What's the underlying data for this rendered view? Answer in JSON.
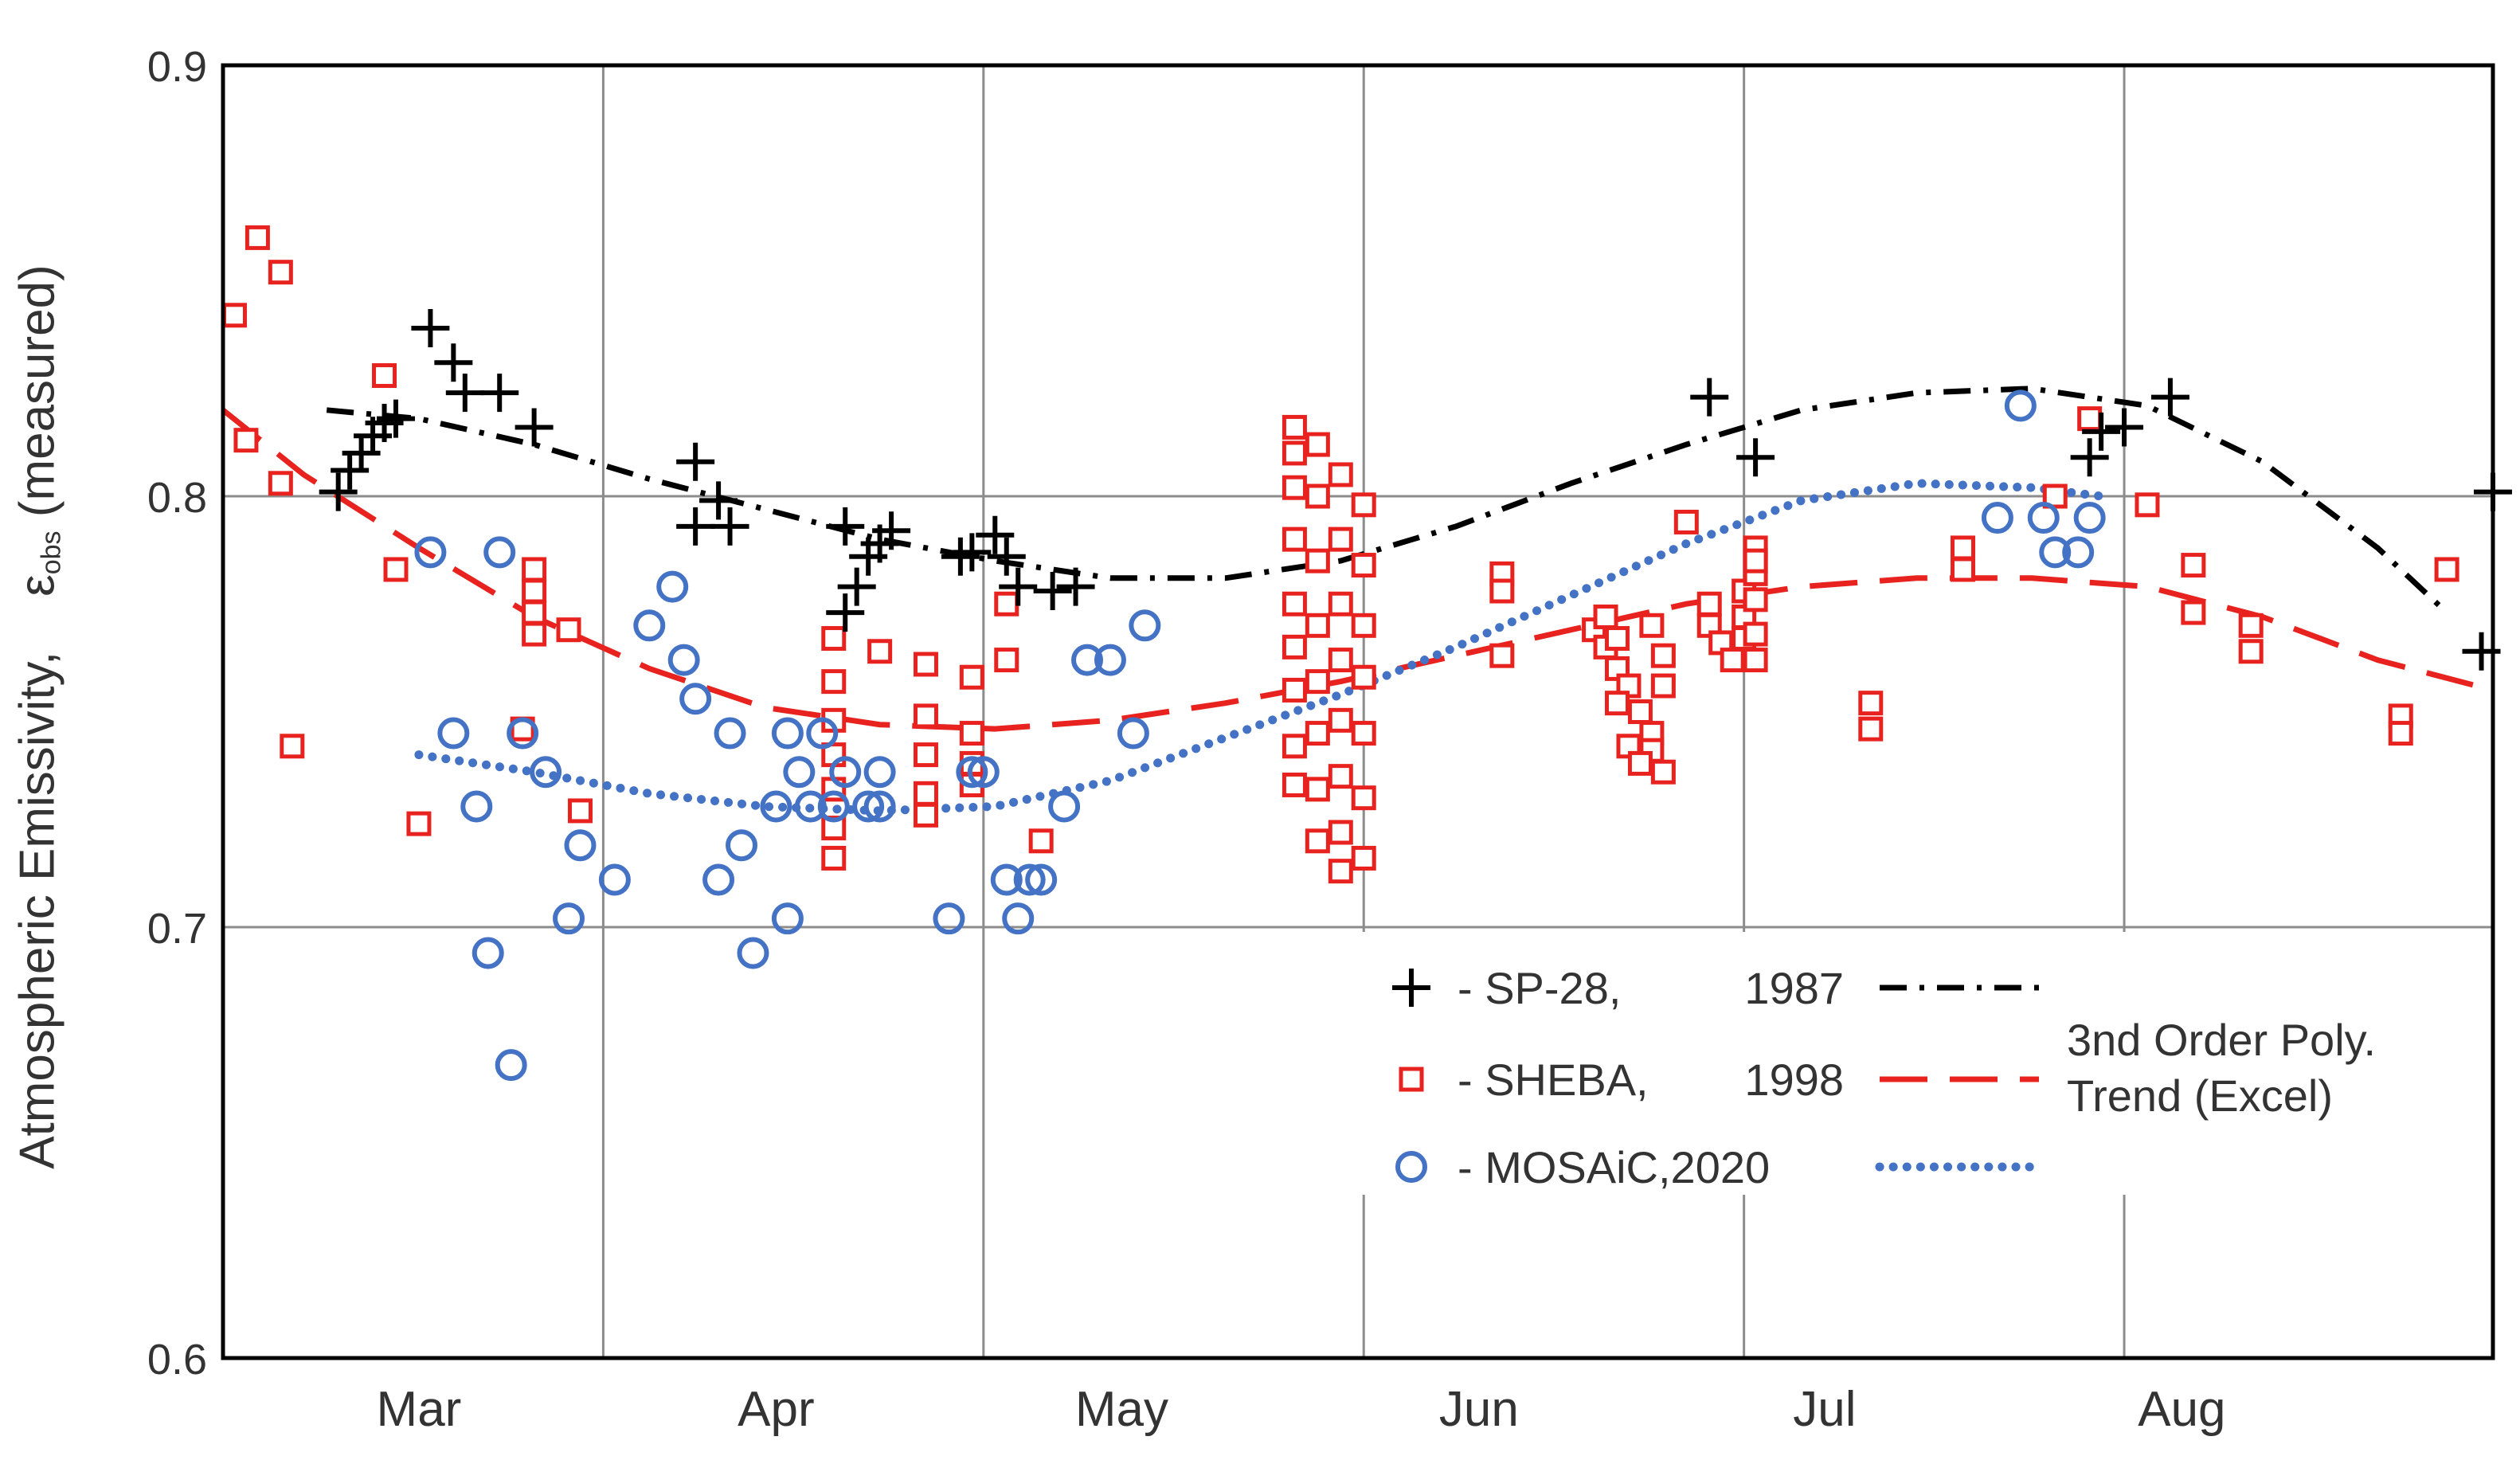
{
  "chart_data": {
    "type": "scatter",
    "title": "",
    "xlabel": "",
    "ylabel_prefix": "Atmospheric Emissivity,",
    "ylabel_symbol": "ε",
    "ylabel_subscript": "obs",
    "ylabel_suffix": "(measured)",
    "x_unit": "day_of_year",
    "xlim": [
      43,
      240
    ],
    "ylim": [
      0.6,
      0.9
    ],
    "yticks": [
      0.6,
      0.7,
      0.8,
      0.9
    ],
    "ytick_labels": [
      "0.6",
      "0.7",
      "0.8",
      "0.9"
    ],
    "month_ticks": [
      {
        "label": "Mar",
        "x": 60
      },
      {
        "label": "Apr",
        "x": 91
      },
      {
        "label": "May",
        "x": 121
      },
      {
        "label": "Jun",
        "x": 152
      },
      {
        "label": "Jul",
        "x": 182
      },
      {
        "label": "Aug",
        "x": 213
      }
    ],
    "gridlines_x": [
      76,
      109,
      142,
      175,
      208
    ],
    "grid": true,
    "series": [
      {
        "name": "SP-28,",
        "year": "1987",
        "color": "#000000",
        "marker": "plus",
        "points": [
          [
            53,
            0.801
          ],
          [
            54,
            0.806
          ],
          [
            55,
            0.81
          ],
          [
            56,
            0.814
          ],
          [
            57,
            0.817
          ],
          [
            58,
            0.818
          ],
          [
            61,
            0.839
          ],
          [
            63,
            0.831
          ],
          [
            64,
            0.824
          ],
          [
            67,
            0.824
          ],
          [
            70,
            0.816
          ],
          [
            84,
            0.808
          ],
          [
            84,
            0.793
          ],
          [
            86,
            0.799
          ],
          [
            87,
            0.793
          ],
          [
            97,
            0.793
          ],
          [
            97,
            0.773
          ],
          [
            98,
            0.779
          ],
          [
            99,
            0.786
          ],
          [
            100,
            0.789
          ],
          [
            101,
            0.792
          ],
          [
            107,
            0.786
          ],
          [
            108,
            0.787
          ],
          [
            110,
            0.791
          ],
          [
            111,
            0.786
          ],
          [
            112,
            0.779
          ],
          [
            115,
            0.778
          ],
          [
            117,
            0.779
          ],
          [
            172,
            0.823
          ],
          [
            176,
            0.809
          ],
          [
            205,
            0.809
          ],
          [
            206,
            0.815
          ],
          [
            208,
            0.816
          ],
          [
            212,
            0.823
          ],
          [
            240,
            0.801
          ],
          [
            239,
            0.764
          ]
        ]
      },
      {
        "name": "SHEBA,",
        "year": "1998",
        "color": "#e8231f",
        "marker": "square",
        "points": [
          [
            44,
            0.842
          ],
          [
            45,
            0.813
          ],
          [
            46,
            0.86
          ],
          [
            48,
            0.852
          ],
          [
            48,
            0.803
          ],
          [
            49,
            0.742
          ],
          [
            57,
            0.828
          ],
          [
            58,
            0.783
          ],
          [
            60,
            0.724
          ],
          [
            70,
            0.783
          ],
          [
            70,
            0.778
          ],
          [
            70,
            0.773
          ],
          [
            70,
            0.768
          ],
          [
            69,
            0.746
          ],
          [
            73,
            0.769
          ],
          [
            74,
            0.727
          ],
          [
            96,
            0.767
          ],
          [
            96,
            0.757
          ],
          [
            96,
            0.748
          ],
          [
            96,
            0.74
          ],
          [
            96,
            0.732
          ],
          [
            96,
            0.723
          ],
          [
            96,
            0.716
          ],
          [
            100,
            0.764
          ],
          [
            104,
            0.761
          ],
          [
            104,
            0.749
          ],
          [
            104,
            0.74
          ],
          [
            104,
            0.731
          ],
          [
            104,
            0.726
          ],
          [
            108,
            0.758
          ],
          [
            108,
            0.745
          ],
          [
            108,
            0.738
          ],
          [
            108,
            0.733
          ],
          [
            111,
            0.775
          ],
          [
            111,
            0.762
          ],
          [
            114,
            0.72
          ],
          [
            136,
            0.816
          ],
          [
            136,
            0.81
          ],
          [
            136,
            0.802
          ],
          [
            136,
            0.79
          ],
          [
            136,
            0.775
          ],
          [
            136,
            0.765
          ],
          [
            136,
            0.755
          ],
          [
            136,
            0.742
          ],
          [
            136,
            0.733
          ],
          [
            138,
            0.812
          ],
          [
            138,
            0.8
          ],
          [
            138,
            0.785
          ],
          [
            138,
            0.77
          ],
          [
            138,
            0.757
          ],
          [
            138,
            0.745
          ],
          [
            138,
            0.732
          ],
          [
            138,
            0.72
          ],
          [
            140,
            0.805
          ],
          [
            140,
            0.79
          ],
          [
            140,
            0.775
          ],
          [
            140,
            0.762
          ],
          [
            140,
            0.748
          ],
          [
            140,
            0.735
          ],
          [
            140,
            0.722
          ],
          [
            140,
            0.713
          ],
          [
            142,
            0.798
          ],
          [
            142,
            0.784
          ],
          [
            142,
            0.77
          ],
          [
            142,
            0.758
          ],
          [
            142,
            0.745
          ],
          [
            142,
            0.73
          ],
          [
            142,
            0.716
          ],
          [
            154,
            0.782
          ],
          [
            154,
            0.778
          ],
          [
            154,
            0.763
          ],
          [
            162,
            0.769
          ],
          [
            163,
            0.765
          ],
          [
            164,
            0.76
          ],
          [
            165,
            0.756
          ],
          [
            166,
            0.75
          ],
          [
            167,
            0.745
          ],
          [
            167,
            0.741
          ],
          [
            168,
            0.736
          ],
          [
            163,
            0.772
          ],
          [
            164,
            0.767
          ],
          [
            164,
            0.752
          ],
          [
            165,
            0.742
          ],
          [
            166,
            0.738
          ],
          [
            167,
            0.77
          ],
          [
            168,
            0.763
          ],
          [
            168,
            0.756
          ],
          [
            170,
            0.794
          ],
          [
            172,
            0.775
          ],
          [
            172,
            0.77
          ],
          [
            173,
            0.766
          ],
          [
            174,
            0.762
          ],
          [
            175,
            0.778
          ],
          [
            175,
            0.772
          ],
          [
            175,
            0.767
          ],
          [
            176,
            0.788
          ],
          [
            176,
            0.782
          ],
          [
            176,
            0.776
          ],
          [
            176,
            0.768
          ],
          [
            176,
            0.762
          ],
          [
            176,
            0.785
          ],
          [
            186,
            0.752
          ],
          [
            186,
            0.746
          ],
          [
            194,
            0.788
          ],
          [
            194,
            0.783
          ],
          [
            202,
            0.8
          ],
          [
            205,
            0.818
          ],
          [
            210,
            0.798
          ],
          [
            214,
            0.784
          ],
          [
            214,
            0.773
          ],
          [
            219,
            0.77
          ],
          [
            219,
            0.764
          ],
          [
            232,
            0.749
          ],
          [
            232,
            0.745
          ],
          [
            236,
            0.783
          ]
        ]
      },
      {
        "name": "MOSAiC,2020",
        "year": "",
        "color": "#4472c4",
        "marker": "circle",
        "points": [
          [
            61,
            0.787
          ],
          [
            63,
            0.745
          ],
          [
            65,
            0.728
          ],
          [
            66,
            0.694
          ],
          [
            67,
            0.787
          ],
          [
            68,
            0.668
          ],
          [
            69,
            0.745
          ],
          [
            71,
            0.736
          ],
          [
            73,
            0.702
          ],
          [
            74,
            0.719
          ],
          [
            77,
            0.711
          ],
          [
            80,
            0.77
          ],
          [
            82,
            0.779
          ],
          [
            83,
            0.762
          ],
          [
            84,
            0.753
          ],
          [
            86,
            0.711
          ],
          [
            87,
            0.745
          ],
          [
            88,
            0.719
          ],
          [
            89,
            0.694
          ],
          [
            91,
            0.728
          ],
          [
            92,
            0.702
          ],
          [
            92,
            0.745
          ],
          [
            93,
            0.736
          ],
          [
            94,
            0.728
          ],
          [
            95,
            0.745
          ],
          [
            96,
            0.728
          ],
          [
            97,
            0.736
          ],
          [
            99,
            0.728
          ],
          [
            100,
            0.736
          ],
          [
            100,
            0.728
          ],
          [
            106,
            0.702
          ],
          [
            108,
            0.736
          ],
          [
            109,
            0.736
          ],
          [
            111,
            0.711
          ],
          [
            112,
            0.702
          ],
          [
            113,
            0.711
          ],
          [
            114,
            0.711
          ],
          [
            116,
            0.728
          ],
          [
            118,
            0.762
          ],
          [
            120,
            0.762
          ],
          [
            122,
            0.745
          ],
          [
            123,
            0.77
          ],
          [
            197,
            0.795
          ],
          [
            199,
            0.821
          ],
          [
            201,
            0.795
          ],
          [
            202,
            0.787
          ],
          [
            204,
            0.787
          ],
          [
            205,
            0.795
          ]
        ]
      }
    ],
    "trends": [
      {
        "series": "SP-28,",
        "style": "dash-dot",
        "color": "#000000",
        "points": [
          [
            52,
            0.82
          ],
          [
            60,
            0.818
          ],
          [
            70,
            0.812
          ],
          [
            80,
            0.804
          ],
          [
            90,
            0.797
          ],
          [
            100,
            0.79
          ],
          [
            110,
            0.785
          ],
          [
            120,
            0.781
          ],
          [
            130,
            0.781
          ],
          [
            140,
            0.785
          ],
          [
            150,
            0.793
          ],
          [
            160,
            0.803
          ],
          [
            170,
            0.812
          ],
          [
            180,
            0.82
          ],
          [
            190,
            0.824
          ],
          [
            200,
            0.825
          ],
          [
            210,
            0.821
          ],
          [
            220,
            0.808
          ],
          [
            230,
            0.788
          ],
          [
            236,
            0.773
          ]
        ]
      },
      {
        "series": "SHEBA,",
        "style": "dashed",
        "color": "#e8231f",
        "points": [
          [
            43,
            0.82
          ],
          [
            50,
            0.805
          ],
          [
            60,
            0.788
          ],
          [
            70,
            0.772
          ],
          [
            80,
            0.76
          ],
          [
            90,
            0.751
          ],
          [
            100,
            0.747
          ],
          [
            110,
            0.746
          ],
          [
            120,
            0.748
          ],
          [
            130,
            0.752
          ],
          [
            140,
            0.757
          ],
          [
            150,
            0.763
          ],
          [
            160,
            0.769
          ],
          [
            170,
            0.775
          ],
          [
            180,
            0.779
          ],
          [
            190,
            0.781
          ],
          [
            200,
            0.781
          ],
          [
            210,
            0.779
          ],
          [
            220,
            0.772
          ],
          [
            230,
            0.762
          ],
          [
            240,
            0.755
          ]
        ]
      },
      {
        "series": "MOSAiC,2020",
        "style": "dotted",
        "color": "#4472c4",
        "points": [
          [
            60,
            0.74
          ],
          [
            70,
            0.736
          ],
          [
            80,
            0.731
          ],
          [
            90,
            0.728
          ],
          [
            100,
            0.727
          ],
          [
            110,
            0.728
          ],
          [
            120,
            0.734
          ],
          [
            130,
            0.744
          ],
          [
            140,
            0.754
          ],
          [
            150,
            0.765
          ],
          [
            160,
            0.777
          ],
          [
            170,
            0.789
          ],
          [
            180,
            0.799
          ],
          [
            190,
            0.803
          ],
          [
            200,
            0.802
          ],
          [
            206,
            0.8
          ]
        ]
      }
    ],
    "legend_position": "bottom-right",
    "legend_trend_label_line1": "3nd Order Poly.",
    "legend_trend_label_line2": "Trend (Excel)"
  }
}
